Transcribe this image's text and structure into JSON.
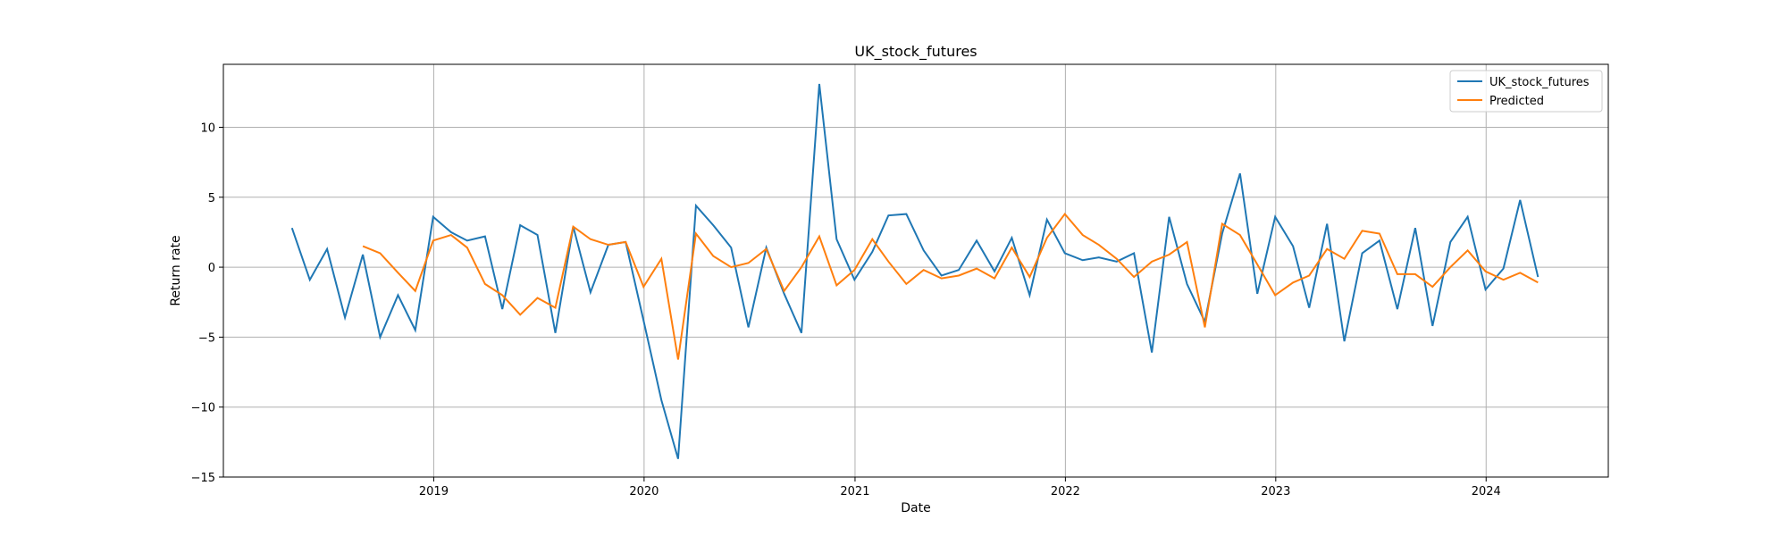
{
  "chart_data": {
    "type": "line",
    "title": "UK_stock_futures",
    "xlabel": "Date",
    "ylabel": "Return rate",
    "xlim": [
      "2018-01-01",
      "2024-07-31"
    ],
    "ylim": [
      -15,
      14.5
    ],
    "x_ticks": [
      "2019-01-01",
      "2020-01-01",
      "2021-01-01",
      "2022-01-01",
      "2023-01-01",
      "2024-01-01"
    ],
    "x_tick_labels": [
      "2019",
      "2020",
      "2021",
      "2022",
      "2023",
      "2024"
    ],
    "y_ticks": [
      -15,
      -10,
      -5,
      0,
      5,
      10
    ],
    "y_tick_labels": [
      "−15",
      "−10",
      "−5",
      "0",
      "5",
      "10"
    ],
    "grid": true,
    "legend_position": "top-right",
    "series": [
      {
        "name": "UK_stock_futures",
        "color": "#1f77b4",
        "points": [
          [
            "2018-04-30",
            2.8
          ],
          [
            "2018-05-31",
            -0.9
          ],
          [
            "2018-06-30",
            1.3
          ],
          [
            "2018-07-31",
            -3.6
          ],
          [
            "2018-08-31",
            0.9
          ],
          [
            "2018-09-30",
            -5.0
          ],
          [
            "2018-10-31",
            -2.0
          ],
          [
            "2018-11-30",
            -4.5
          ],
          [
            "2018-12-31",
            3.6
          ],
          [
            "2019-01-31",
            2.5
          ],
          [
            "2019-02-28",
            1.9
          ],
          [
            "2019-03-31",
            2.2
          ],
          [
            "2019-04-30",
            -3.0
          ],
          [
            "2019-05-31",
            3.0
          ],
          [
            "2019-06-30",
            2.3
          ],
          [
            "2019-07-31",
            -4.7
          ],
          [
            "2019-08-31",
            2.9
          ],
          [
            "2019-09-30",
            -1.8
          ],
          [
            "2019-10-31",
            1.6
          ],
          [
            "2019-11-30",
            1.8
          ],
          [
            "2019-12-31",
            -3.8
          ],
          [
            "2020-01-31",
            -9.5
          ],
          [
            "2020-02-29",
            -13.7
          ],
          [
            "2020-03-31",
            4.4
          ],
          [
            "2020-04-30",
            3.0
          ],
          [
            "2020-05-31",
            1.4
          ],
          [
            "2020-06-30",
            -4.3
          ],
          [
            "2020-07-31",
            1.4
          ],
          [
            "2020-08-31",
            -1.9
          ],
          [
            "2020-09-30",
            -4.7
          ],
          [
            "2020-10-31",
            13.1
          ],
          [
            "2020-11-30",
            2.0
          ],
          [
            "2020-12-31",
            -0.9
          ],
          [
            "2021-01-31",
            1.1
          ],
          [
            "2021-02-28",
            3.7
          ],
          [
            "2021-03-31",
            3.8
          ],
          [
            "2021-04-30",
            1.2
          ],
          [
            "2021-05-31",
            -0.6
          ],
          [
            "2021-06-30",
            -0.2
          ],
          [
            "2021-07-31",
            1.9
          ],
          [
            "2021-08-31",
            -0.3
          ],
          [
            "2021-09-30",
            2.1
          ],
          [
            "2021-10-31",
            -2.0
          ],
          [
            "2021-11-30",
            3.4
          ],
          [
            "2021-12-31",
            1.0
          ],
          [
            "2022-01-31",
            0.5
          ],
          [
            "2022-02-28",
            0.7
          ],
          [
            "2022-03-31",
            0.4
          ],
          [
            "2022-04-30",
            1.0
          ],
          [
            "2022-05-31",
            -6.1
          ],
          [
            "2022-06-30",
            3.6
          ],
          [
            "2022-07-31",
            -1.2
          ],
          [
            "2022-08-31",
            -3.9
          ],
          [
            "2022-09-30",
            2.4
          ],
          [
            "2022-10-31",
            6.7
          ],
          [
            "2022-11-30",
            -1.9
          ],
          [
            "2022-12-31",
            3.6
          ],
          [
            "2023-01-31",
            1.5
          ],
          [
            "2023-02-28",
            -2.9
          ],
          [
            "2023-03-31",
            3.1
          ],
          [
            "2023-04-30",
            -5.3
          ],
          [
            "2023-05-31",
            1.0
          ],
          [
            "2023-06-30",
            1.9
          ],
          [
            "2023-07-31",
            -3.0
          ],
          [
            "2023-08-31",
            2.8
          ],
          [
            "2023-09-30",
            -4.2
          ],
          [
            "2023-10-31",
            1.8
          ],
          [
            "2023-11-30",
            3.6
          ],
          [
            "2023-12-31",
            -1.6
          ],
          [
            "2024-01-31",
            -0.1
          ],
          [
            "2024-02-29",
            4.8
          ],
          [
            "2024-03-31",
            -0.7
          ]
        ]
      },
      {
        "name": "Predicted",
        "color": "#ff7f0e",
        "points": [
          [
            "2018-08-31",
            1.5
          ],
          [
            "2018-09-30",
            1.0
          ],
          [
            "2018-10-31",
            -0.4
          ],
          [
            "2018-11-30",
            -1.7
          ],
          [
            "2018-12-31",
            1.9
          ],
          [
            "2019-01-31",
            2.3
          ],
          [
            "2019-02-28",
            1.4
          ],
          [
            "2019-03-31",
            -1.2
          ],
          [
            "2019-04-30",
            -2.0
          ],
          [
            "2019-05-31",
            -3.4
          ],
          [
            "2019-06-30",
            -2.2
          ],
          [
            "2019-07-31",
            -2.9
          ],
          [
            "2019-08-31",
            2.9
          ],
          [
            "2019-09-30",
            2.0
          ],
          [
            "2019-10-31",
            1.6
          ],
          [
            "2019-11-30",
            1.8
          ],
          [
            "2019-12-31",
            -1.4
          ],
          [
            "2020-01-31",
            0.6
          ],
          [
            "2020-02-29",
            -6.6
          ],
          [
            "2020-03-31",
            2.4
          ],
          [
            "2020-04-30",
            0.8
          ],
          [
            "2020-05-31",
            0.0
          ],
          [
            "2020-06-30",
            0.3
          ],
          [
            "2020-07-31",
            1.3
          ],
          [
            "2020-08-31",
            -1.7
          ],
          [
            "2020-09-30",
            0.0
          ],
          [
            "2020-10-31",
            2.2
          ],
          [
            "2020-11-30",
            -1.3
          ],
          [
            "2020-12-31",
            -0.2
          ],
          [
            "2021-01-31",
            2.0
          ],
          [
            "2021-02-28",
            0.4
          ],
          [
            "2021-03-31",
            -1.2
          ],
          [
            "2021-04-30",
            -0.2
          ],
          [
            "2021-05-31",
            -0.8
          ],
          [
            "2021-06-30",
            -0.6
          ],
          [
            "2021-07-31",
            -0.1
          ],
          [
            "2021-08-31",
            -0.8
          ],
          [
            "2021-09-30",
            1.4
          ],
          [
            "2021-10-31",
            -0.7
          ],
          [
            "2021-11-30",
            2.1
          ],
          [
            "2021-12-31",
            3.8
          ],
          [
            "2022-01-31",
            2.3
          ],
          [
            "2022-02-28",
            1.6
          ],
          [
            "2022-03-31",
            0.6
          ],
          [
            "2022-04-30",
            -0.7
          ],
          [
            "2022-05-31",
            0.4
          ],
          [
            "2022-06-30",
            0.9
          ],
          [
            "2022-07-31",
            1.8
          ],
          [
            "2022-08-31",
            -4.3
          ],
          [
            "2022-09-30",
            3.1
          ],
          [
            "2022-10-31",
            2.3
          ],
          [
            "2022-11-30",
            0.2
          ],
          [
            "2022-12-31",
            -2.0
          ],
          [
            "2023-01-31",
            -1.1
          ],
          [
            "2023-02-28",
            -0.6
          ],
          [
            "2023-03-31",
            1.3
          ],
          [
            "2023-04-30",
            0.6
          ],
          [
            "2023-05-31",
            2.6
          ],
          [
            "2023-06-30",
            2.4
          ],
          [
            "2023-07-31",
            -0.5
          ],
          [
            "2023-08-31",
            -0.5
          ],
          [
            "2023-09-30",
            -1.4
          ],
          [
            "2023-10-31",
            0.0
          ],
          [
            "2023-11-30",
            1.2
          ],
          [
            "2023-12-31",
            -0.3
          ],
          [
            "2024-01-31",
            -0.9
          ],
          [
            "2024-02-29",
            -0.4
          ],
          [
            "2024-03-31",
            -1.1
          ]
        ]
      }
    ]
  }
}
